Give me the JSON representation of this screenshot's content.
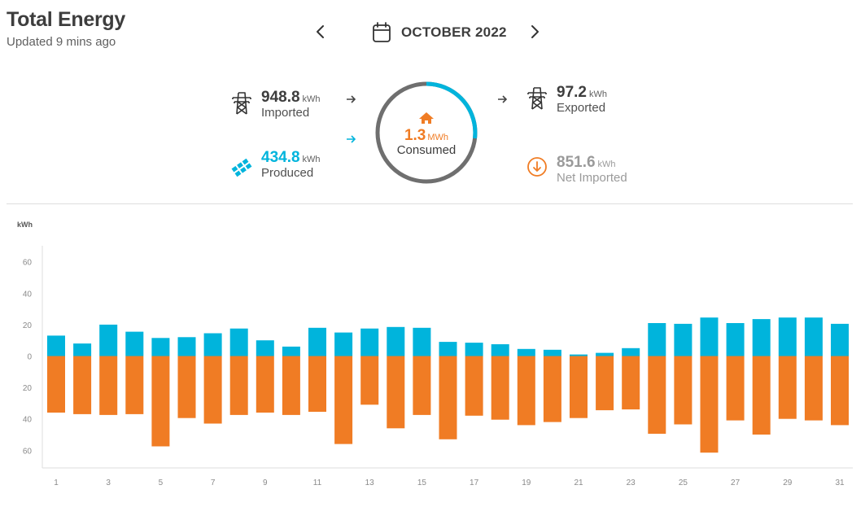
{
  "header": {
    "title": "Total Energy",
    "updated": "Updated 9 mins ago",
    "month": "OCTOBER 2022"
  },
  "summary": {
    "imported": {
      "value": "948.8",
      "unit": "kWh",
      "label": "Imported"
    },
    "produced": {
      "value": "434.8",
      "unit": "kWh",
      "label": "Produced"
    },
    "consumed": {
      "value": "1.3",
      "unit": "MWh",
      "label": "Consumed"
    },
    "exported": {
      "value": "97.2",
      "unit": "kWh",
      "label": "Exported"
    },
    "net": {
      "value": "851.6",
      "unit": "kWh",
      "label": "Net Imported"
    }
  },
  "colors": {
    "solar": "#00b4dc",
    "grid": "#f07c24",
    "text": "#3d3d3d",
    "muted": "#9a9a9a"
  },
  "icons": {
    "prev": "chevron-left-icon",
    "next": "chevron-right-icon",
    "calendar": "calendar-icon",
    "imported": "power-tower-icon",
    "produced": "solar-panel-icon",
    "consumed": "home-icon",
    "exported": "power-tower-icon",
    "net": "arrow-down-circle-icon"
  },
  "chart_data": {
    "type": "bar",
    "ylabel": "kWh",
    "yticks": [
      "60",
      "40",
      "20",
      "0",
      "20",
      "40",
      "60"
    ],
    "ylim": [
      -65,
      70
    ],
    "x": [
      1,
      2,
      3,
      4,
      5,
      6,
      7,
      8,
      9,
      10,
      11,
      12,
      13,
      14,
      15,
      16,
      17,
      18,
      19,
      20,
      21,
      22,
      23,
      24,
      25,
      26,
      27,
      28,
      29,
      30,
      31
    ],
    "xtick_labels": [
      "1",
      "3",
      "5",
      "7",
      "9",
      "11",
      "13",
      "15",
      "17",
      "19",
      "21",
      "23",
      "25",
      "27",
      "29",
      "31"
    ],
    "series": [
      {
        "values": [
          13,
          8,
          20,
          15.5,
          11.5,
          12,
          14.5,
          17.5,
          10,
          6,
          18,
          15,
          17.5,
          18.5,
          18,
          9,
          8.5,
          7.5,
          4.5,
          4,
          1,
          2,
          5,
          21,
          20.5,
          24.5,
          21,
          23.5,
          24.5,
          24.5,
          20.5
        ]
      },
      {
        "values": [
          -36,
          -37,
          -37.5,
          -37,
          -57.5,
          -39.5,
          -43,
          -37.5,
          -36,
          -37.5,
          -35.5,
          -56,
          -31,
          -46,
          -37.5,
          -53,
          -38,
          -40.5,
          -44,
          -42,
          -39.5,
          -34.5,
          -34,
          -49.5,
          -43.5,
          -61.5,
          -41,
          -50,
          -40,
          -41,
          -44
        ]
      }
    ],
    "grid": false
  }
}
